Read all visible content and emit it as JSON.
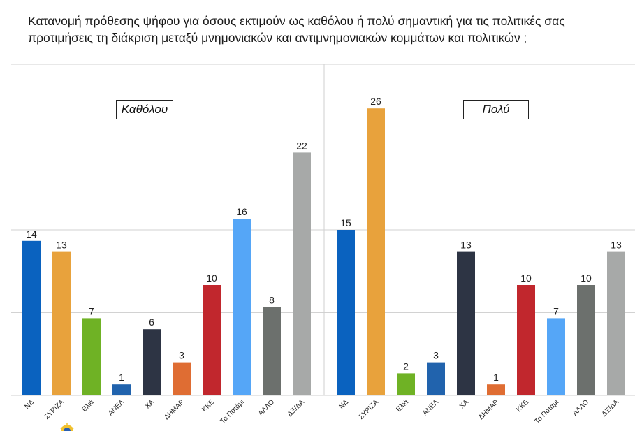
{
  "title": "Κατανομή πρόθεσης ψήφου για όσους εκτιμούν ως καθόλου ή πολύ σημαντική για τις πολιτικές σας προτιμήσεις τη διάκριση μεταξύ μνημονιακών και αντιμνημονιακών κομμάτων και πολιτικών ;",
  "chart_data": [
    {
      "type": "bar",
      "title": "Καθόλου",
      "categories": [
        "ΝΔ",
        "ΣΥΡΙΖΑ",
        "Ελιά",
        "ΑΝΕΛ",
        "ΧΑ",
        "ΔΗΜΑΡ",
        "ΚΚΕ",
        "Το Ποτάμι",
        "ΑΛΛΟ",
        "ΔΞ/ΔΑ"
      ],
      "values": [
        14,
        13,
        7,
        1,
        6,
        3,
        10,
        16,
        8,
        22
      ],
      "colors": [
        "#0a62bf",
        "#e8a23c",
        "#6fb225",
        "#2163ad",
        "#2d3444",
        "#df6d33",
        "#c1272d",
        "#55a6f7",
        "#6c706d",
        "#a7a9a8"
      ],
      "ylim": [
        0,
        30
      ],
      "grid": true
    },
    {
      "type": "bar",
      "title": "Πολύ",
      "categories": [
        "ΝΔ",
        "ΣΥΡΙΖΑ",
        "Ελιά",
        "ΑΝΕΛ",
        "ΧΑ",
        "ΔΗΜΑΡ",
        "ΚΚΕ",
        "Το Ποτάμι",
        "ΑΛΛΟ",
        "ΔΞ/ΔΑ"
      ],
      "values": [
        15,
        26,
        2,
        3,
        13,
        1,
        10,
        7,
        10,
        13
      ],
      "colors": [
        "#0a62bf",
        "#e8a23c",
        "#6fb225",
        "#2163ad",
        "#2d3444",
        "#df6d33",
        "#c1272d",
        "#55a6f7",
        "#6c706d",
        "#a7a9a8"
      ],
      "ylim": [
        0,
        30
      ],
      "grid": true
    }
  ]
}
